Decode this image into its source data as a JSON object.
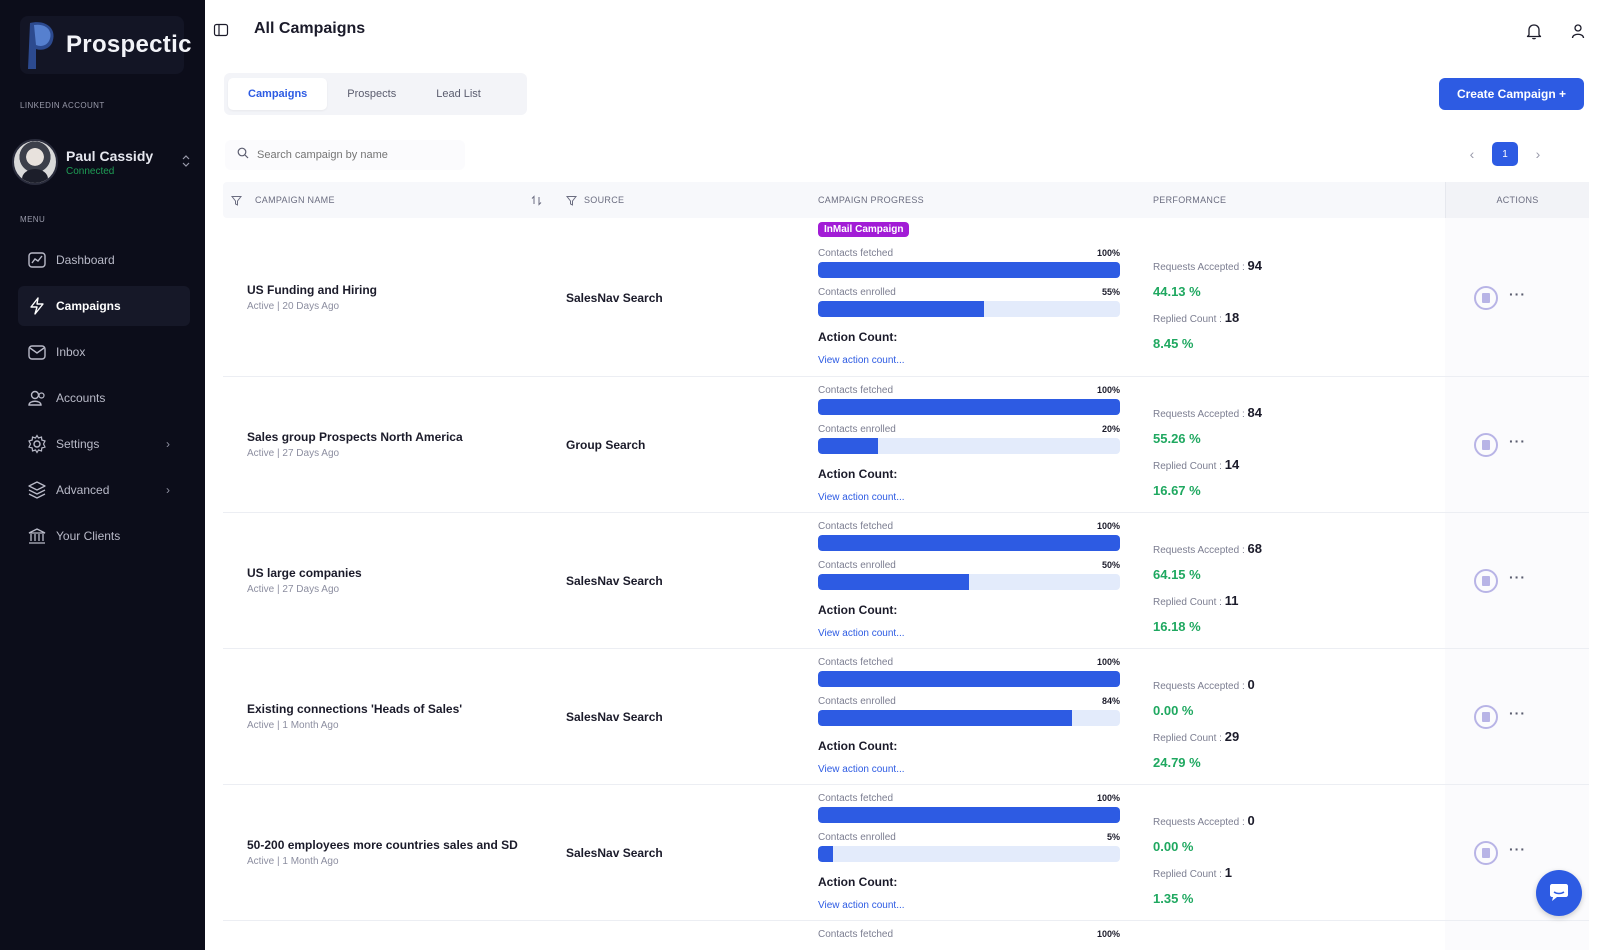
{
  "sidebar": {
    "logo_text": "Prospectic",
    "account_section": "LINKEDIN ACCOUNT",
    "account_name": "Paul Cassidy",
    "account_status": "Connected",
    "menu_label": "MENU",
    "items": [
      {
        "label": "Dashboard",
        "icon": "dashboard-icon"
      },
      {
        "label": "Campaigns",
        "icon": "lightning-icon"
      },
      {
        "label": "Inbox",
        "icon": "inbox-icon"
      },
      {
        "label": "Accounts",
        "icon": "users-icon"
      },
      {
        "label": "Settings",
        "icon": "gear-icon"
      },
      {
        "label": "Advanced",
        "icon": "layers-icon"
      },
      {
        "label": "Your Clients",
        "icon": "bank-icon"
      }
    ]
  },
  "header": {
    "title": "All Campaigns"
  },
  "tabs": [
    {
      "label": "Campaigns",
      "active": true
    },
    {
      "label": "Prospects",
      "active": false
    },
    {
      "label": "Lead List",
      "active": false
    }
  ],
  "create_button": "Create Campaign +",
  "search": {
    "placeholder": "Search campaign by name"
  },
  "pager": {
    "page": "1"
  },
  "table": {
    "headers": {
      "name": "CAMPAIGN NAME",
      "source": "SOURCE",
      "progress": "CAMPAIGN PROGRESS",
      "performance": "PERFORMANCE",
      "actions": "ACTIONS"
    },
    "labels": {
      "fetched": "Contacts fetched",
      "enrolled": "Contacts enrolled",
      "action_count": "Action Count:",
      "view_action": "View action count...",
      "requests_accepted": "Requests Accepted :",
      "replied_count": "Replied Count :"
    },
    "rows": [
      {
        "name": "US Funding and Hiring",
        "status": "Active | 20 Days Ago",
        "source": "SalesNav Search",
        "badge": "InMail Campaign",
        "fetched_pct": "100%",
        "fetched": 1.0,
        "enrolled_pct": "55%",
        "enrolled": 0.55,
        "accepted": "94",
        "accepted_pct": "44.13 %",
        "replied": "18",
        "replied_pct": "8.45 %"
      },
      {
        "name": "Sales group Prospects North America",
        "status": "Active | 27 Days Ago",
        "source": "Group Search",
        "badge": "",
        "fetched_pct": "100%",
        "fetched": 1.0,
        "enrolled_pct": "20%",
        "enrolled": 0.2,
        "accepted": "84",
        "accepted_pct": "55.26 %",
        "replied": "14",
        "replied_pct": "16.67 %"
      },
      {
        "name": "US large companies",
        "status": "Active | 27 Days Ago",
        "source": "SalesNav Search",
        "badge": "",
        "fetched_pct": "100%",
        "fetched": 1.0,
        "enrolled_pct": "50%",
        "enrolled": 0.5,
        "accepted": "68",
        "accepted_pct": "64.15 %",
        "replied": "11",
        "replied_pct": "16.18 %"
      },
      {
        "name": "Existing connections 'Heads of Sales'",
        "status": "Active | 1 Month Ago",
        "source": "SalesNav Search",
        "badge": "",
        "fetched_pct": "100%",
        "fetched": 1.0,
        "enrolled_pct": "84%",
        "enrolled": 0.84,
        "accepted": "0",
        "accepted_pct": "0.00 %",
        "replied": "29",
        "replied_pct": "24.79 %"
      },
      {
        "name": "50-200 employees more countries sales and SD",
        "status": "Active | 1 Month Ago",
        "source": "SalesNav Search",
        "badge": "",
        "fetched_pct": "100%",
        "fetched": 1.0,
        "enrolled_pct": "5%",
        "enrolled": 0.05,
        "accepted": "0",
        "accepted_pct": "0.00 %",
        "replied": "1",
        "replied_pct": "1.35 %"
      }
    ],
    "partial_row": {
      "fetched_pct": "100%"
    }
  },
  "colors": {
    "accent": "#2d5be3",
    "sidebar_bg": "#0c0d1a",
    "positive": "#1fa860",
    "badge": "#a21cd6",
    "connected": "#1f9d55"
  }
}
